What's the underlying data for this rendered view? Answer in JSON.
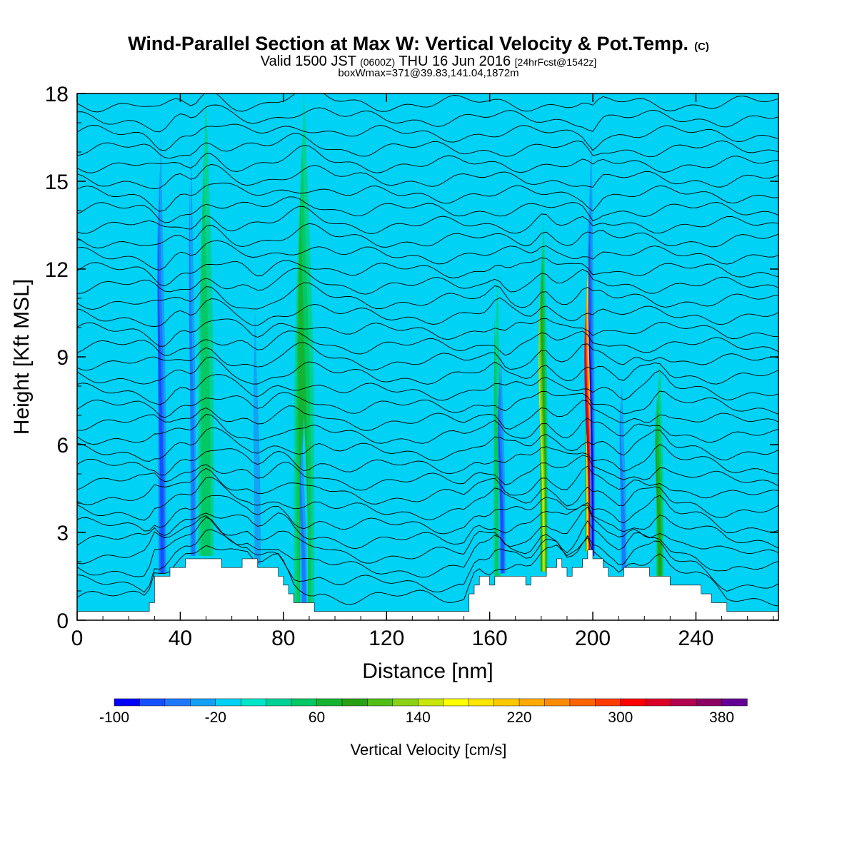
{
  "chart_data": {
    "type": "heatmap",
    "title": "Wind-Parallel Section at Max W: Vertical Velocity & Pot.Temp.",
    "title_mark": "(C)",
    "subtitle": {
      "part1": "Valid 1500 JST",
      "part2": "(0600Z)",
      "part3": "THU 16 Jun 2016",
      "part4": "[24hrFcst@1542z]"
    },
    "subtitle2": "boxWmax=371@39.83,141.04,1872m",
    "xlabel": "Distance [nm]",
    "ylabel": "Height [Kft MSL]",
    "xlim": [
      0,
      272
    ],
    "ylim": [
      0,
      18
    ],
    "x_ticks": [
      0,
      40,
      80,
      120,
      160,
      200,
      240
    ],
    "y_ticks": [
      0,
      3,
      6,
      9,
      12,
      15,
      18
    ],
    "colorbar": {
      "label": "Vertical Velocity [cm/s]",
      "min": -100,
      "step": 20,
      "tick_labels": [
        -100,
        -20,
        60,
        140,
        220,
        300,
        380
      ],
      "colors": [
        "#0000ff",
        "#1450ff",
        "#1e78ff",
        "#14a0f5",
        "#00d2f5",
        "#00e6c8",
        "#00d296",
        "#00c864",
        "#14b432",
        "#28a014",
        "#50be14",
        "#8cd214",
        "#c8e60a",
        "#ffff00",
        "#ffe600",
        "#ffc800",
        "#ffaa00",
        "#ff8c00",
        "#ff6400",
        "#ff3c00",
        "#ff0000",
        "#dc0028",
        "#b40050",
        "#8c0064",
        "#640096"
      ]
    },
    "updrafts": [
      {
        "x": 199,
        "top": 13.5,
        "width": 4,
        "peak": 371
      },
      {
        "x": 181,
        "top": 14,
        "width": 3,
        "peak": 150
      },
      {
        "x": 226,
        "top": 9,
        "width": 3,
        "peak": 80
      },
      {
        "x": 88,
        "top": 18,
        "width": 8,
        "peak": 60
      },
      {
        "x": 50,
        "top": 18,
        "width": 6,
        "peak": 40
      },
      {
        "x": 163,
        "top": 12,
        "width": 3,
        "peak": 50
      }
    ],
    "downdrafts": [
      {
        "x": 33,
        "top": 18,
        "width": 4,
        "peak": -90
      },
      {
        "x": 45,
        "top": 18,
        "width": 3,
        "peak": -70
      },
      {
        "x": 70,
        "top": 12,
        "width": 4,
        "peak": -50
      },
      {
        "x": 88,
        "top": 7,
        "width": 3,
        "peak": -60
      },
      {
        "x": 165,
        "top": 10,
        "width": 3,
        "peak": -80
      },
      {
        "x": 200,
        "top": 18,
        "width": 2,
        "peak": -100
      },
      {
        "x": 212,
        "top": 9,
        "width": 3,
        "peak": -60
      }
    ],
    "terrain": [
      [
        0,
        0.3
      ],
      [
        27,
        0.3
      ],
      [
        30,
        1.6
      ],
      [
        35,
        1.6
      ],
      [
        40,
        1.9
      ],
      [
        43,
        2.2
      ],
      [
        50,
        2.2
      ],
      [
        55,
        1.9
      ],
      [
        63,
        1.9
      ],
      [
        66,
        2.1
      ],
      [
        70,
        1.9
      ],
      [
        78,
        1.6
      ],
      [
        80,
        1.3
      ],
      [
        84,
        0.6
      ],
      [
        88,
        0.6
      ],
      [
        92,
        0.3
      ],
      [
        150,
        0.3
      ],
      [
        155,
        1.6
      ],
      [
        160,
        1.3
      ],
      [
        165,
        1.6
      ],
      [
        175,
        1.3
      ],
      [
        180,
        1.6
      ],
      [
        186,
        2.0
      ],
      [
        190,
        1.6
      ],
      [
        195,
        2.0
      ],
      [
        198,
        2.5
      ],
      [
        200,
        2.2
      ],
      [
        205,
        1.6
      ],
      [
        210,
        1.6
      ],
      [
        215,
        2.0
      ],
      [
        222,
        1.6
      ],
      [
        230,
        1.3
      ],
      [
        240,
        1.1
      ],
      [
        248,
        0.6
      ],
      [
        252,
        0.3
      ],
      [
        272,
        0.3
      ]
    ],
    "isentropes": {
      "count": 34,
      "base_height": 0.5,
      "spacing": 0.52
    }
  }
}
